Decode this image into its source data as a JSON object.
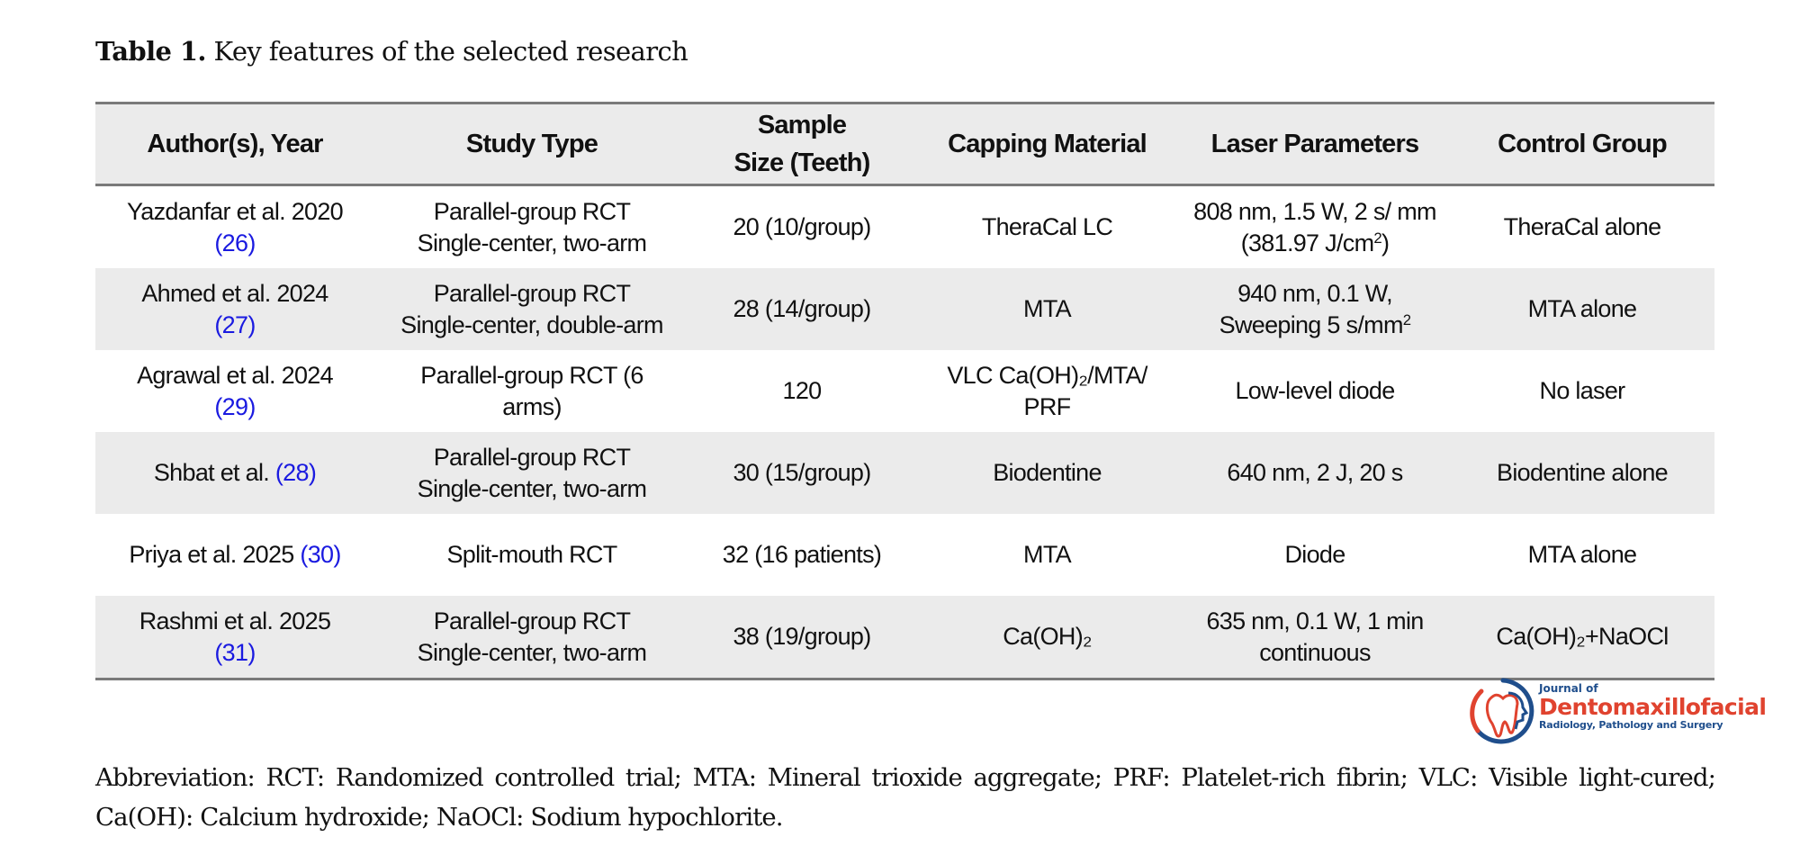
{
  "caption": {
    "label": "Table 1.",
    "text": "Key features of the selected research"
  },
  "table": {
    "headers": [
      "Author(s), Year",
      "Study Type",
      "Sample Size (Teeth)",
      "Capping Material",
      "Laser Parameters",
      "Control Group"
    ],
    "rows": [
      {
        "author": "Yazdanfar et al. 2020",
        "ref": "(26)",
        "study_type": "Parallel-group RCT Single-center, two-arm",
        "sample_size": "20 (10/group)",
        "capping_material": "TheraCal LC",
        "laser_pre": "808 nm, 1.5 W, 2 s/ mm (381.97 J/cm",
        "laser_sup": "2",
        "laser_post": ")",
        "control_pre": "TheraCal alone",
        "control_sub": "",
        "control_post": ""
      },
      {
        "author": "Ahmed et al. 2024",
        "ref": "(27)",
        "study_type": "Parallel-group RCT Single-center, double-arm",
        "sample_size": "28 (14/group)",
        "capping_material": "MTA",
        "laser_pre": "940 nm, 0.1 W, Sweeping 5 s/mm",
        "laser_sup": "2",
        "laser_post": "",
        "control_pre": "MTA alone",
        "control_sub": "",
        "control_post": ""
      },
      {
        "author": "Agrawal et al. 2024",
        "ref": "(29)",
        "study_type": "Parallel-group RCT (6 arms)",
        "sample_size": "120",
        "capping_material": "VLC Ca(OH)₂/MTA/ PRF",
        "laser_pre": "Low-level diode",
        "laser_sup": "",
        "laser_post": "",
        "control_pre": "No laser",
        "control_sub": "",
        "control_post": ""
      },
      {
        "author": "Shbat et al.",
        "ref": "(28)",
        "study_type": "Parallel-group RCT Single-center, two-arm",
        "sample_size": "30 (15/group)",
        "capping_material": "Biodentine",
        "laser_pre": "640 nm, 2 J, 20 s",
        "laser_sup": "",
        "laser_post": "",
        "control_pre": "Biodentine alone",
        "control_sub": "",
        "control_post": ""
      },
      {
        "author": "Priya et al. 2025",
        "ref": "(30)",
        "study_type": "Split-mouth RCT",
        "sample_size": "32 (16 patients)",
        "capping_material": "MTA",
        "laser_pre": "Diode",
        "laser_sup": "",
        "laser_post": "",
        "control_pre": "MTA alone",
        "control_sub": "",
        "control_post": ""
      },
      {
        "author": "Rashmi et al. 2025",
        "ref": "(31)",
        "study_type": "Parallel-group RCT Single-center, two-arm",
        "sample_size": "38 (19/group)",
        "capping_material": "Ca(OH)₂",
        "laser_pre": "635 nm, 0.1 W, 1 min continuous",
        "laser_sup": "",
        "laser_post": "",
        "control_pre": "Ca(OH)₂+NaOCl",
        "control_sub": "",
        "control_post": ""
      }
    ]
  },
  "logo": {
    "line1": "Journal of",
    "line2": "Dentomaxillofacial",
    "line3": "Radiology, Pathology and Surgery",
    "icon": "tooth-head-circle-logo",
    "colors": {
      "red": "#e0432f",
      "blue": "#1f4e8c"
    }
  },
  "abbreviation": "Abbreviation: RCT: Randomized controlled trial; MTA: Mineral trioxide aggregate; PRF: Platelet-rich fibrin; VLC: Visible light-cured; Ca(OH): Calcium hydroxide; NaOCl: Sodium hypochlorite.",
  "colors": {
    "header_bg": "#ebebeb",
    "stripe_bg": "#ebebeb",
    "rule": "#7a7a7a",
    "ref_link": "#1a1ae0"
  }
}
